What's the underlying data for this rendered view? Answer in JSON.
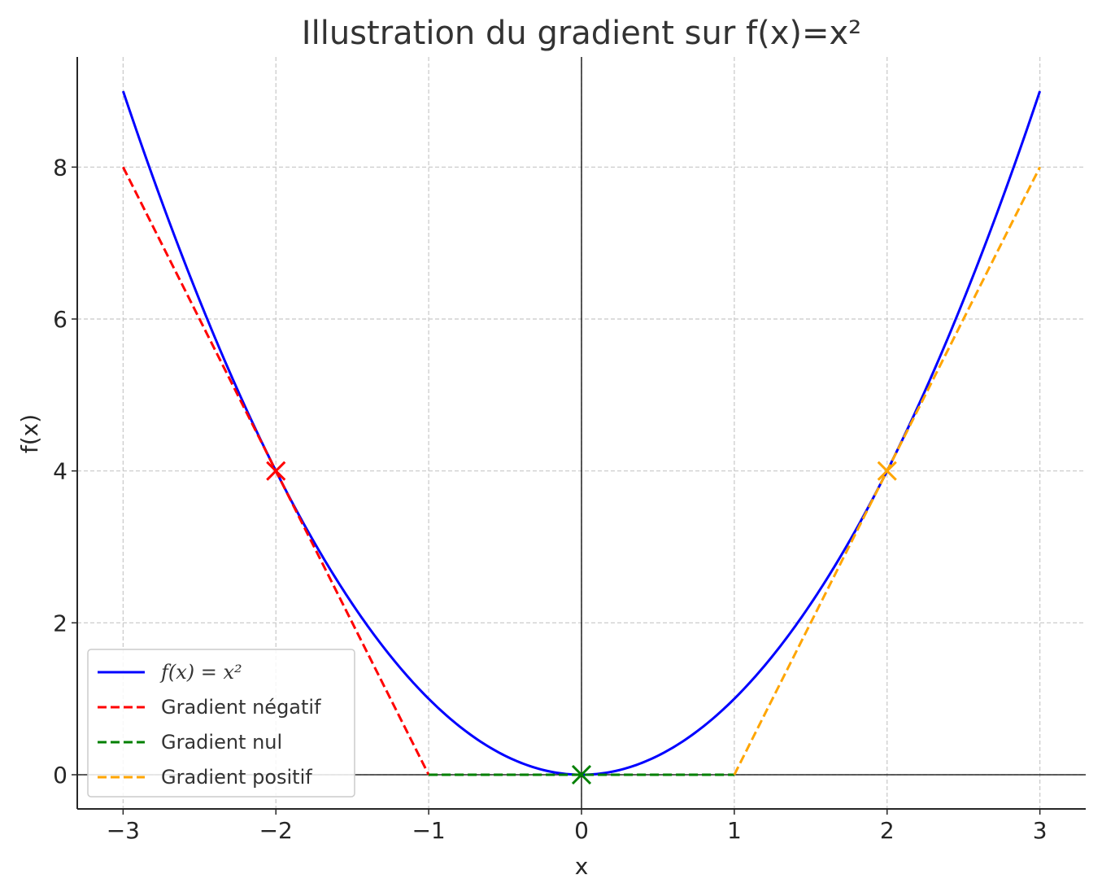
{
  "chart_data": {
    "type": "line",
    "title": "Illustration du gradient sur f(x)=x²",
    "xlabel": "x",
    "ylabel": "f(x)",
    "xlim": [
      -3.3,
      3.3
    ],
    "ylim": [
      -0.45,
      9.45
    ],
    "xticks": [
      -3,
      -2,
      -1,
      0,
      1,
      2,
      3
    ],
    "xtick_labels": [
      "−3",
      "−2",
      "−1",
      "0",
      "1",
      "2",
      "3"
    ],
    "yticks": [
      0,
      2,
      4,
      6,
      8
    ],
    "ytick_labels": [
      "0",
      "2",
      "4",
      "6",
      "8"
    ],
    "grid": true,
    "reference_lines": {
      "x": 0,
      "y": 0
    },
    "legend_position": "lower left",
    "series": [
      {
        "name": "f(x) = x²",
        "kind": "curve",
        "function": "x^2",
        "x_range": [
          -3,
          3
        ],
        "color": "#0000ff",
        "style": "solid"
      },
      {
        "name": "Gradient négatif",
        "kind": "tangent",
        "x": [
          -3,
          -1
        ],
        "y": [
          8,
          0
        ],
        "color": "#ff0000",
        "style": "dashed",
        "marker": {
          "x": -2,
          "y": 4
        }
      },
      {
        "name": "Gradient nul",
        "kind": "tangent",
        "x": [
          -1,
          1
        ],
        "y": [
          0,
          0
        ],
        "color": "#008000",
        "style": "dashed",
        "marker": {
          "x": 0,
          "y": 0
        }
      },
      {
        "name": "Gradient positif",
        "kind": "tangent",
        "x": [
          1,
          3
        ],
        "y": [
          0,
          8
        ],
        "color": "#ffa500",
        "style": "dashed",
        "marker": {
          "x": 2,
          "y": 4
        }
      }
    ]
  }
}
